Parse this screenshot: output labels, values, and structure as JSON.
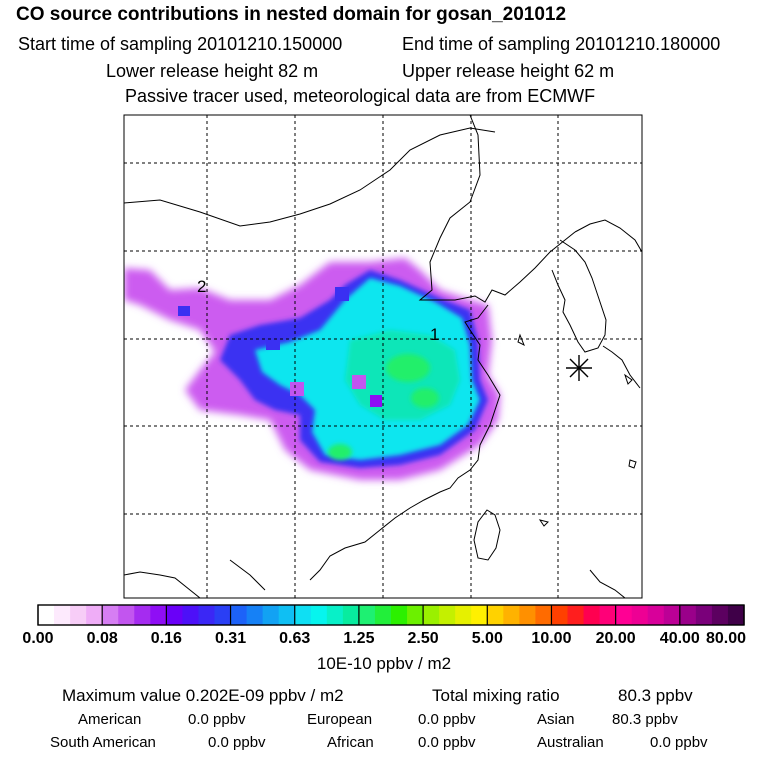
{
  "header": {
    "title": "CO  source contributions in nested domain for gosan_201012",
    "start_label": "Start time of sampling 20101210.150000",
    "end_label": "End time of sampling 20101210.180000",
    "lower_label": "Lower release height   82 m",
    "upper_label": "Upper release height   62 m",
    "note": "Passive tracer used, meteorological data are from ECMWF"
  },
  "map": {
    "markers": [
      {
        "label": "1"
      },
      {
        "label": "2"
      }
    ],
    "receptor_icon": "asterisk-icon"
  },
  "colorbar": {
    "tick_labels": [
      "0.00",
      "0.08",
      "0.16",
      "0.31",
      "0.63",
      "1.25",
      "2.50",
      "5.00",
      "10.00",
      "20.00",
      "40.00",
      "80.00"
    ],
    "unit": "10E-10 ppbv / m2",
    "colors": [
      "#ffffff",
      "#fdeafd",
      "#f7cdf7",
      "#efadf7",
      "#d67ef3",
      "#c255ef",
      "#a52cf0",
      "#8f0ef5",
      "#6a00f8",
      "#4d10f8",
      "#3b27f5",
      "#2a3ff5",
      "#1d62f8",
      "#1681f6",
      "#12a2f3",
      "#0fbff3",
      "#0fdff3",
      "#06f5ee",
      "#08f0c8",
      "#08ec9f",
      "#1ef072",
      "#22ef3a",
      "#2cf000",
      "#6cf000",
      "#9af000",
      "#c4f000",
      "#e6f000",
      "#fff000",
      "#ffd200",
      "#ffb200",
      "#ff9000",
      "#ff6b00",
      "#ff4000",
      "#ff1e1e",
      "#ff0050",
      "#ff0078",
      "#ff0094",
      "#ee0094",
      "#d8009a",
      "#bc0096",
      "#9a008a",
      "#7a007a",
      "#5c0060",
      "#3f0048"
    ]
  },
  "stats": {
    "max_label": "Maximum value  0.202E-09 ppbv / m2",
    "total_label": "Total mixing ratio",
    "total_value": "80.3 ppbv",
    "regions": [
      {
        "name": "American",
        "value": "0.0 ppbv"
      },
      {
        "name": "European",
        "value": "0.0 ppbv"
      },
      {
        "name": "Asian",
        "value": "80.3 ppbv"
      },
      {
        "name": "South American",
        "value": "0.0 ppbv"
      },
      {
        "name": "African",
        "value": "0.0 ppbv"
      },
      {
        "name": "Australian",
        "value": "0.0 ppbv"
      }
    ]
  }
}
